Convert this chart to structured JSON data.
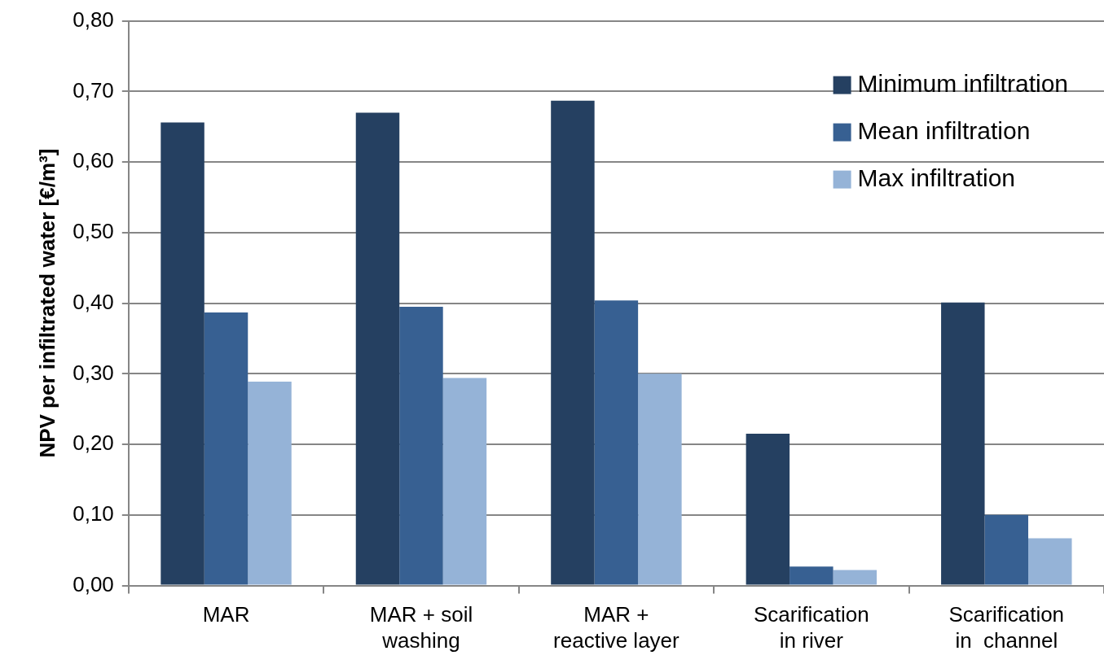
{
  "chart_data": {
    "type": "bar",
    "ylabel": "NPV per infiltrated water [€/m³]",
    "categories": [
      "MAR",
      "MAR + soil washing",
      "MAR + reactive layer",
      "Scarification in river",
      "Scarification in  channel"
    ],
    "series": [
      {
        "name": "Minimum infiltration",
        "color": "#254061",
        "values": [
          0.656,
          0.67,
          0.687,
          0.215,
          0.401
        ]
      },
      {
        "name": "Mean infiltration",
        "color": "#376092",
        "values": [
          0.387,
          0.395,
          0.404,
          0.027,
          0.1
        ]
      },
      {
        "name": "Max infiltration",
        "color": "#95b3d7",
        "values": [
          0.289,
          0.294,
          0.3,
          0.022,
          0.067
        ]
      }
    ],
    "ylim": [
      0,
      0.8
    ],
    "yticks": [
      {
        "value": 0,
        "label": "0,00"
      },
      {
        "value": 0.1,
        "label": "0,10"
      },
      {
        "value": 0.2,
        "label": "0,20"
      },
      {
        "value": 0.3,
        "label": "0,30"
      },
      {
        "value": 0.4,
        "label": "0,40"
      },
      {
        "value": 0.5,
        "label": "0,50"
      },
      {
        "value": 0.6,
        "label": "0,60"
      },
      {
        "value": 0.7,
        "label": "0,70"
      },
      {
        "value": 0.8,
        "label": "0,80"
      }
    ],
    "grid": "y",
    "legend": "top right"
  }
}
